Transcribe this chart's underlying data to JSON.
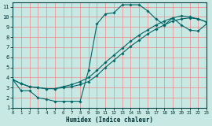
{
  "bg_color": "#c8e8e4",
  "grid_color": "#ee8888",
  "line_color": "#006666",
  "xlabel": "Humidex (Indice chaleur)",
  "xlim": [
    0,
    23
  ],
  "ylim": [
    1,
    11.4
  ],
  "xticks": [
    0,
    1,
    2,
    3,
    4,
    5,
    6,
    7,
    8,
    9,
    10,
    11,
    12,
    13,
    14,
    15,
    16,
    17,
    18,
    19,
    20,
    21,
    22,
    23
  ],
  "yticks": [
    1,
    2,
    3,
    4,
    5,
    6,
    7,
    8,
    9,
    10,
    11
  ],
  "curve1_x": [
    0,
    1,
    2,
    3,
    4,
    5,
    6,
    7,
    8,
    9,
    10,
    11,
    12,
    13,
    14,
    15,
    16,
    17,
    18,
    19,
    20,
    21,
    22,
    23
  ],
  "curve1_y": [
    3.8,
    2.7,
    2.7,
    2.0,
    1.85,
    1.65,
    1.65,
    1.65,
    1.65,
    4.7,
    9.3,
    10.3,
    10.4,
    11.2,
    11.2,
    11.2,
    10.6,
    9.8,
    9.2,
    9.9,
    9.2,
    8.7,
    8.6,
    9.3
  ],
  "curve2_x": [
    0,
    1,
    2,
    3,
    4,
    5,
    6,
    7,
    8,
    9,
    10,
    11,
    12,
    13,
    14,
    15,
    16,
    17,
    18,
    19,
    20,
    21,
    22,
    23
  ],
  "curve2_y": [
    3.8,
    3.4,
    3.1,
    3.0,
    2.9,
    2.9,
    3.0,
    3.1,
    3.3,
    3.6,
    4.2,
    5.0,
    5.7,
    6.4,
    7.1,
    7.7,
    8.3,
    8.8,
    9.2,
    9.6,
    9.8,
    9.9,
    9.8,
    9.5
  ],
  "curve3_x": [
    0,
    1,
    2,
    3,
    4,
    5,
    6,
    7,
    8,
    9,
    10,
    11,
    12,
    13,
    14,
    15,
    16,
    17,
    18,
    19,
    20,
    21,
    22,
    23
  ],
  "curve3_y": [
    3.8,
    3.4,
    3.1,
    3.0,
    2.9,
    2.9,
    3.1,
    3.3,
    3.6,
    4.0,
    4.7,
    5.5,
    6.2,
    6.9,
    7.6,
    8.2,
    8.7,
    9.2,
    9.6,
    9.9,
    10.1,
    10.0,
    9.8,
    9.5
  ]
}
